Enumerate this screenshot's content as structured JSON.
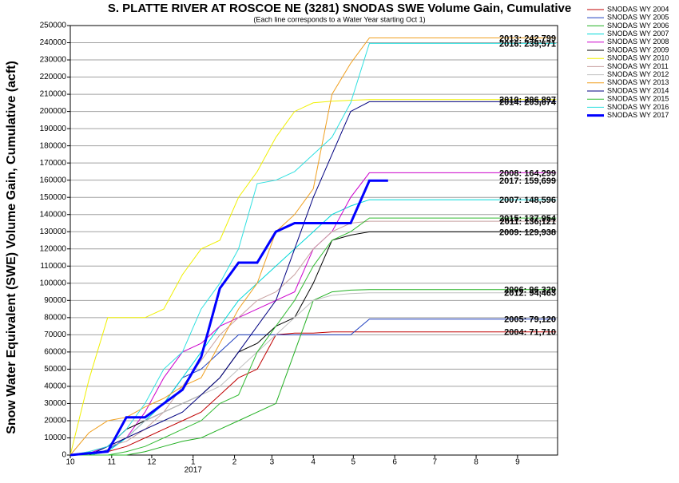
{
  "chart_data": {
    "type": "line",
    "title": "S. PLATTE RIVER AT ROSCOE NE (3281) SNODAS SWE Volume Gain, Cumulative",
    "subtitle": "(Each line corresponds to a Water Year starting Oct 1)",
    "y_label": "Snow Water Equivalent (SWE) Volume Gain, Cumulative (acft)",
    "year_label": "2017",
    "x": [
      0,
      14,
      28,
      42,
      56,
      70,
      84,
      98,
      112,
      126,
      140,
      154,
      168,
      182,
      196,
      210,
      224,
      238,
      252,
      266,
      280,
      294,
      308,
      322,
      336,
      350,
      364
    ],
    "xlim": [
      0,
      365
    ],
    "xticks": [
      {
        "value": 0,
        "label": "10"
      },
      {
        "value": 31,
        "label": "11"
      },
      {
        "value": 61,
        "label": "12"
      },
      {
        "value": 92,
        "label": "1"
      },
      {
        "value": 123,
        "label": "2"
      },
      {
        "value": 151,
        "label": "3"
      },
      {
        "value": 182,
        "label": "4"
      },
      {
        "value": 212,
        "label": "5"
      },
      {
        "value": 243,
        "label": "6"
      },
      {
        "value": 273,
        "label": "7"
      },
      {
        "value": 304,
        "label": "8"
      },
      {
        "value": 335,
        "label": "9"
      }
    ],
    "ylim": [
      0,
      250000
    ],
    "yticks": [
      0,
      10000,
      20000,
      30000,
      40000,
      50000,
      60000,
      70000,
      80000,
      90000,
      100000,
      110000,
      120000,
      130000,
      140000,
      150000,
      160000,
      170000,
      180000,
      190000,
      200000,
      210000,
      220000,
      230000,
      240000,
      250000
    ],
    "grid": true,
    "legend": "outside-right",
    "series": [
      {
        "name": "SNODAS WY 2004",
        "color": "#c00000",
        "end_label": "2004: 71,710",
        "values": [
          0,
          0,
          2000,
          5000,
          10000,
          15000,
          20000,
          25000,
          35000,
          45000,
          50000,
          70000,
          71000,
          71000,
          71710,
          71710,
          71710,
          71710,
          71710,
          71710,
          71710,
          71710,
          71710,
          71710,
          71710,
          71710,
          71710
        ]
      },
      {
        "name": "SNODAS WY 2005",
        "color": "#1f3fbf",
        "end_label": "2005: 79,120",
        "values": [
          0,
          0,
          3000,
          10000,
          20000,
          30000,
          45000,
          50000,
          60000,
          70000,
          70000,
          70000,
          70000,
          70000,
          70000,
          70000,
          79120,
          79120,
          79120,
          79120,
          79120,
          79120,
          79120,
          79120,
          79120,
          79120,
          79120
        ]
      },
      {
        "name": "SNODAS WY 2006",
        "color": "#22b022",
        "end_label": "2006: 96,329",
        "values": [
          0,
          0,
          0,
          0,
          2000,
          5000,
          8000,
          10000,
          15000,
          20000,
          25000,
          30000,
          60000,
          90000,
          95000,
          96000,
          96329,
          96329,
          96329,
          96329,
          96329,
          96329,
          96329,
          96329,
          96329,
          96329,
          96329
        ]
      },
      {
        "name": "SNODAS WY 2007",
        "color": "#00d8d8",
        "end_label": "2007: 148,596",
        "values": [
          0,
          0,
          2000,
          10000,
          20000,
          30000,
          45000,
          60000,
          75000,
          90000,
          100000,
          110000,
          120000,
          130000,
          140000,
          145000,
          148596,
          148596,
          148596,
          148596,
          148596,
          148596,
          148596,
          148596,
          148596,
          148596,
          148596
        ]
      },
      {
        "name": "SNODAS WY 2008",
        "color": "#cc00cc",
        "end_label": "2008: 164,299",
        "values": [
          0,
          1000,
          5000,
          10000,
          25000,
          45000,
          60000,
          65000,
          75000,
          80000,
          85000,
          90000,
          95000,
          120000,
          130000,
          150000,
          164299,
          164299,
          164299,
          164299,
          164299,
          164299,
          164299,
          164299,
          164299,
          164299,
          164299
        ]
      },
      {
        "name": "SNODAS WY 2009",
        "color": "#000000",
        "end_label": "2009: 129,938",
        "values": [
          0,
          0,
          5000,
          15000,
          20000,
          25000,
          30000,
          35000,
          45000,
          60000,
          65000,
          75000,
          80000,
          100000,
          125000,
          128000,
          129938,
          129938,
          129938,
          129938,
          129938,
          129938,
          129938,
          129938,
          129938,
          129938,
          129938
        ]
      },
      {
        "name": "SNODAS WY 2010",
        "color": "#f0f000",
        "end_label": "2010: 206,897",
        "values": [
          0,
          44000,
          80000,
          80000,
          80000,
          85000,
          105000,
          120000,
          125000,
          150000,
          165000,
          185000,
          200000,
          205000,
          206000,
          206500,
          206897,
          206897,
          206897,
          206897,
          206897,
          206897,
          206897,
          206897,
          206897,
          206897,
          206897
        ]
      },
      {
        "name": "SNODAS WY 2011",
        "color": "#c8a0a0",
        "end_label": "2011: 136,121",
        "values": [
          0,
          2000,
          5000,
          8000,
          15000,
          25000,
          40000,
          55000,
          70000,
          80000,
          90000,
          95000,
          105000,
          120000,
          130000,
          135000,
          136121,
          136121,
          136121,
          136121,
          136121,
          136121,
          136121,
          136121,
          136121,
          136121,
          136121
        ]
      },
      {
        "name": "SNODAS WY 2012",
        "color": "#c0c0c0",
        "end_label": "2012: 94,463",
        "values": [
          0,
          0,
          5000,
          10000,
          20000,
          25000,
          30000,
          35000,
          40000,
          50000,
          60000,
          70000,
          80000,
          90000,
          93000,
          94000,
          94463,
          94463,
          94463,
          94463,
          94463,
          94463,
          94463,
          94463,
          94463,
          94463,
          94463
        ]
      },
      {
        "name": "SNODAS WY 2013",
        "color": "#f0a020",
        "end_label": "2013: 242,799",
        "values": [
          0,
          13000,
          20000,
          22000,
          28000,
          33000,
          40000,
          45000,
          65000,
          85000,
          100000,
          130000,
          140000,
          155000,
          210000,
          228000,
          242799,
          242799,
          242799,
          242799,
          242799,
          242799,
          242799,
          242799,
          242799,
          242799,
          242799
        ]
      },
      {
        "name": "SNODAS WY 2014",
        "color": "#000080",
        "end_label": "2014: 205,674",
        "values": [
          0,
          0,
          5000,
          10000,
          15000,
          20000,
          25000,
          35000,
          45000,
          60000,
          75000,
          90000,
          120000,
          150000,
          175000,
          200000,
          205674,
          205674,
          205674,
          205674,
          205674,
          205674,
          205674,
          205674,
          205674,
          205674,
          205674
        ]
      },
      {
        "name": "SNODAS WY 2015",
        "color": "#33bb33",
        "end_label": "2015: 137,954",
        "values": [
          0,
          0,
          0,
          2000,
          5000,
          10000,
          15000,
          20000,
          30000,
          35000,
          60000,
          75000,
          90000,
          110000,
          125000,
          130000,
          137954,
          137954,
          137954,
          137954,
          137954,
          137954,
          137954,
          137954,
          137954,
          137954,
          137954
        ]
      },
      {
        "name": "SNODAS WY 2016",
        "color": "#30e0e0",
        "end_label": "2016: 239,571",
        "values": [
          0,
          2000,
          5000,
          15000,
          30000,
          50000,
          60000,
          85000,
          100000,
          120000,
          158000,
          160000,
          165000,
          175000,
          185000,
          205000,
          239571,
          239571,
          239571,
          239571,
          239571,
          239571,
          239571,
          239571,
          239571,
          239571,
          239571
        ]
      },
      {
        "name": "SNODAS WY 2017",
        "color": "#0000ff",
        "width": 3,
        "end_label": "2017: 159,699",
        "values": [
          0,
          1000,
          2000,
          22000,
          22000,
          30000,
          38000,
          57000,
          97000,
          112000,
          112000,
          130000,
          135000,
          135000,
          135000,
          135000,
          159699,
          159699,
          null,
          null,
          null,
          null,
          null,
          null,
          null,
          null,
          null
        ]
      }
    ]
  }
}
